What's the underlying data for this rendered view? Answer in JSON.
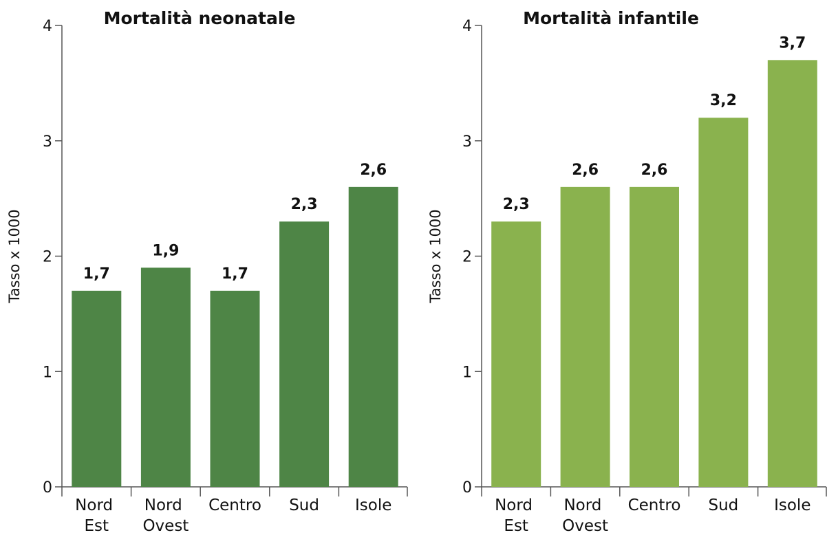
{
  "chart_data": [
    {
      "type": "bar",
      "title": "Mortalità neonatale",
      "y_label": "Tasso x 1000",
      "categories": [
        "Nord Est",
        "Nord Ovest",
        "Centro",
        "Sud",
        "Isole"
      ],
      "values": [
        1.7,
        1.9,
        1.7,
        2.3,
        2.6
      ],
      "value_labels": [
        "1,7",
        "1,9",
        "1,7",
        "2,3",
        "2,6"
      ],
      "color": "#4e8546",
      "ylim": [
        0,
        4
      ],
      "yticks": [
        0,
        1,
        2,
        3,
        4
      ]
    },
    {
      "type": "bar",
      "title": "Mortalità infantile",
      "y_label": "Tasso x 1000",
      "categories": [
        "Nord Est",
        "Nord Ovest",
        "Centro",
        "Sud",
        "Isole"
      ],
      "values": [
        2.3,
        2.6,
        2.6,
        3.2,
        3.7
      ],
      "value_labels": [
        "2,3",
        "2,6",
        "2,6",
        "3,2",
        "3,7"
      ],
      "color": "#8ab24e",
      "ylim": [
        0,
        4
      ],
      "yticks": [
        0,
        1,
        2,
        3,
        4
      ]
    }
  ]
}
